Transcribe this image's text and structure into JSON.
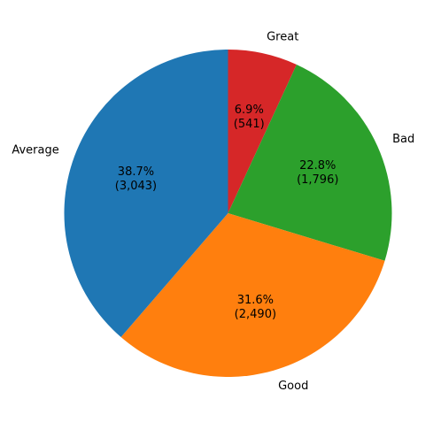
{
  "chart_data": {
    "type": "pie",
    "title": "",
    "start_angle_deg": 90,
    "direction": "clockwise",
    "slices": [
      {
        "label": "Great",
        "value": 541,
        "percent_label": "6.9%",
        "count_label": "(541)",
        "color": "#d62728"
      },
      {
        "label": "Bad",
        "value": 1796,
        "percent_label": "22.8%",
        "count_label": "(1,796)",
        "color": "#2ca02c"
      },
      {
        "label": "Good",
        "value": 2490,
        "percent_label": "31.6%",
        "count_label": "(2,490)",
        "color": "#ff7f0e"
      },
      {
        "label": "Average",
        "value": 3043,
        "percent_label": "38.7%",
        "count_label": "(3,043)",
        "color": "#1f77b4"
      }
    ]
  }
}
